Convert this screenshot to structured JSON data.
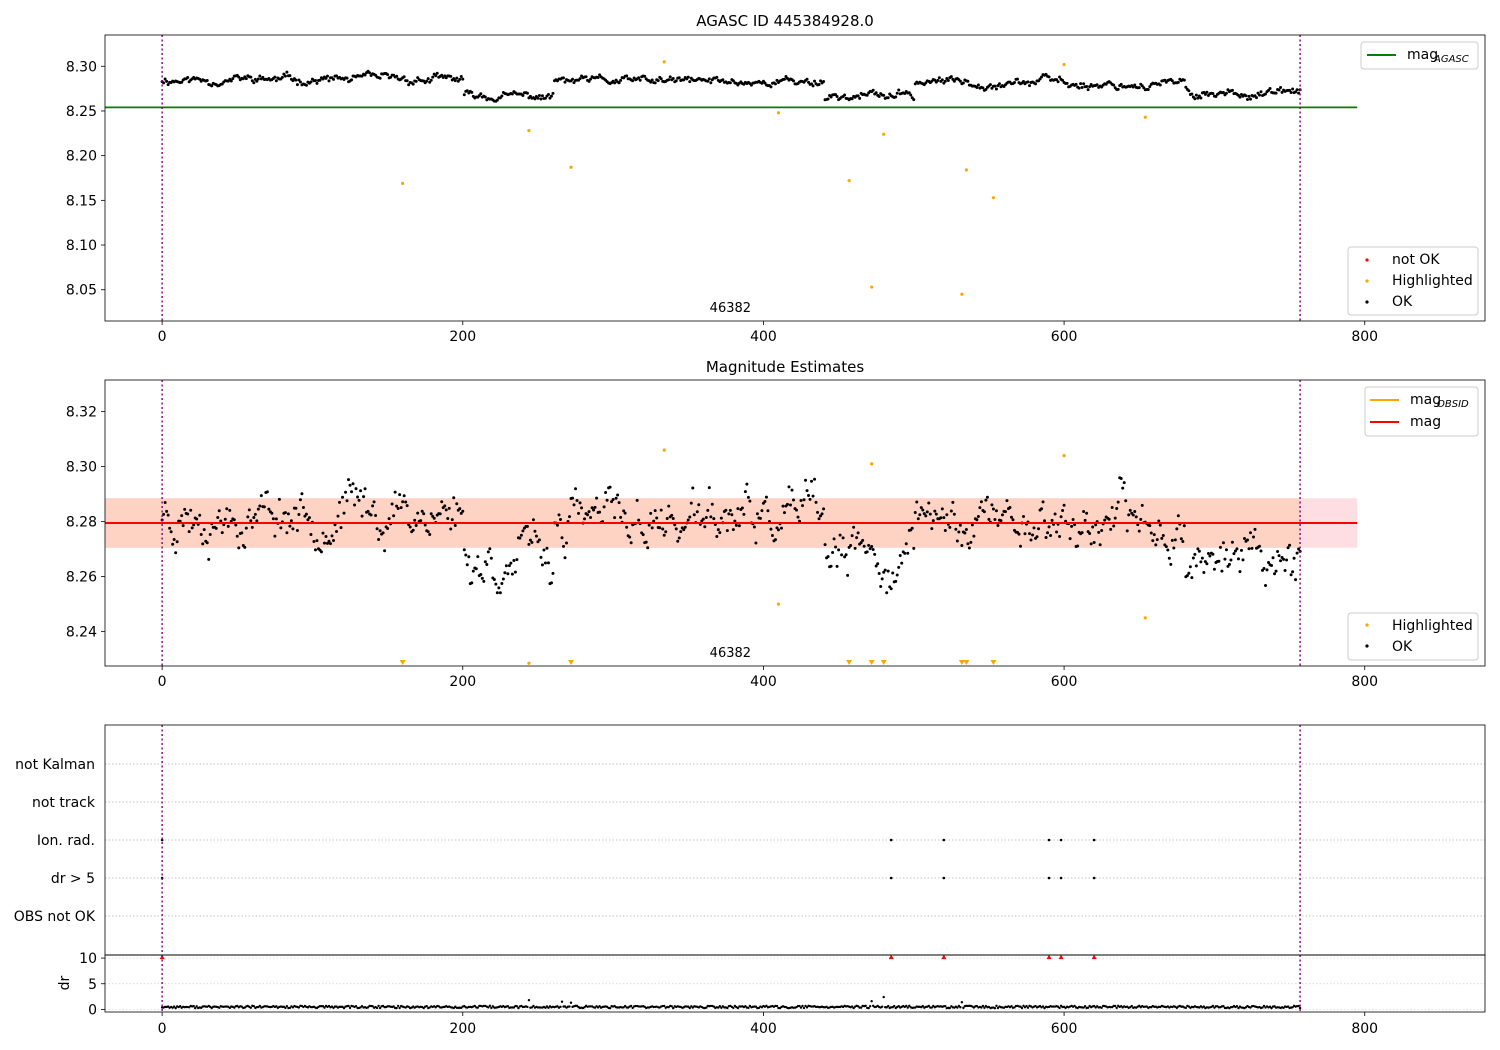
{
  "chart_data": [
    {
      "type": "scatter",
      "title": "AGASC ID 445384928.0",
      "xlim": [
        -38,
        880
      ],
      "ylim": [
        8.015,
        8.335
      ],
      "xticks": [
        0,
        200,
        400,
        600,
        800
      ],
      "yticks": [
        8.05,
        8.1,
        8.15,
        8.2,
        8.25,
        8.3
      ],
      "ytick_labels": [
        "8.05",
        "8.10",
        "8.15",
        "8.20",
        "8.25",
        "8.30"
      ],
      "obsid_label": "46382",
      "obsid_label_x": 378,
      "vlines": [
        0,
        757
      ],
      "ok_points": {
        "n": 758,
        "base": 8.283,
        "segments": [
          [
            0,
            200,
            8.285
          ],
          [
            200,
            260,
            8.266
          ],
          [
            260,
            440,
            8.283
          ],
          [
            440,
            500,
            8.267
          ],
          [
            500,
            600,
            8.283
          ],
          [
            600,
            680,
            8.28
          ],
          [
            680,
            757,
            8.27
          ]
        ]
      },
      "highlighted_points": [
        [
          160,
          8.169
        ],
        [
          244,
          8.228
        ],
        [
          272,
          8.187
        ],
        [
          334,
          8.305
        ],
        [
          410,
          8.248
        ],
        [
          457,
          8.172
        ],
        [
          472,
          8.053
        ],
        [
          480,
          8.224
        ],
        [
          532,
          8.045
        ],
        [
          535,
          8.184
        ],
        [
          553,
          8.153
        ],
        [
          600,
          8.302
        ],
        [
          654,
          8.243
        ]
      ],
      "not_ok_points": [],
      "reference_line": {
        "y": 8.254,
        "x": [
          -38,
          795
        ],
        "color": "#008000"
      },
      "legend_lines": [
        {
          "label": "mag",
          "sub": "AGASC",
          "color": "#008000"
        }
      ],
      "legend_points": [
        {
          "label": "not OK",
          "color": "#ff0000"
        },
        {
          "label": "Highlighted",
          "color": "#ffa500"
        },
        {
          "label": "OK",
          "color": "#000000"
        }
      ]
    },
    {
      "type": "scatter",
      "title": "Magnitude Estimates",
      "xlim": [
        -38,
        880
      ],
      "ylim": [
        8.2275,
        8.3315
      ],
      "xticks": [
        0,
        200,
        400,
        600,
        800
      ],
      "yticks": [
        8.24,
        8.26,
        8.28,
        8.3,
        8.32
      ],
      "ytick_labels": [
        "8.24",
        "8.26",
        "8.28",
        "8.30",
        "8.32"
      ],
      "obsid_label": "46382",
      "obsid_label_x": 378,
      "vlines": [
        0,
        757
      ],
      "ok_points": {
        "n": 758,
        "base": 8.28,
        "segments": [
          [
            0,
            200,
            8.284
          ],
          [
            200,
            260,
            8.266
          ],
          [
            260,
            440,
            8.28
          ],
          [
            440,
            500,
            8.266
          ],
          [
            500,
            600,
            8.281
          ],
          [
            600,
            680,
            8.279
          ],
          [
            680,
            757,
            8.268
          ]
        ]
      },
      "highlighted_points": [
        [
          244,
          8.2285
        ],
        [
          334,
          8.306
        ],
        [
          410,
          8.25
        ],
        [
          472,
          8.301
        ],
        [
          600,
          8.304
        ],
        [
          654,
          8.245
        ]
      ],
      "clipped_markers": [
        160,
        272,
        457,
        472,
        480,
        532,
        535,
        553
      ],
      "mag_line": {
        "y": 8.2795,
        "x": [
          -38,
          795
        ],
        "color": "#ff0000"
      },
      "band_outer": {
        "y": [
          8.2705,
          8.2885
        ],
        "x": [
          -38,
          795
        ],
        "color": "#ffd6dc"
      },
      "band_inner": {
        "y": [
          8.2705,
          8.2885
        ],
        "x": [
          -38,
          757
        ],
        "color": "#ffd2c0"
      },
      "legend_lines": [
        {
          "label": "mag",
          "sub": "OBSID",
          "color": "#ffa500"
        },
        {
          "label": "mag",
          "sub": "",
          "color": "#ff0000"
        }
      ],
      "legend_points": [
        {
          "label": "Highlighted",
          "color": "#ffa500"
        },
        {
          "label": "OK",
          "color": "#000000"
        }
      ]
    },
    {
      "type": "scatter",
      "title": "",
      "xlim": [
        -38,
        880
      ],
      "xticks": [
        0,
        200,
        400,
        600,
        800
      ],
      "flag_labels": [
        "not Kalman",
        "not track",
        "Ion. rad.",
        "dr > 5",
        "OBS not OK"
      ],
      "flag_points": {
        "Ion. rad.": [
          0,
          485,
          520,
          590,
          598,
          620
        ],
        "dr > 5": [
          0,
          485,
          520,
          590,
          598,
          620
        ]
      },
      "dr_ylabel": "dr",
      "dr_ylim": [
        -0.5,
        10.6
      ],
      "dr_yticks": [
        0,
        5,
        10
      ],
      "dr_clipped": [
        0,
        485,
        520,
        590,
        598,
        620
      ],
      "dr_spikes": [
        [
          244,
          1.8
        ],
        [
          266,
          1.5
        ],
        [
          272,
          1.3
        ],
        [
          472,
          1.6
        ],
        [
          480,
          2.4
        ],
        [
          532,
          1.4
        ]
      ],
      "vlines": [
        0,
        757
      ]
    }
  ]
}
